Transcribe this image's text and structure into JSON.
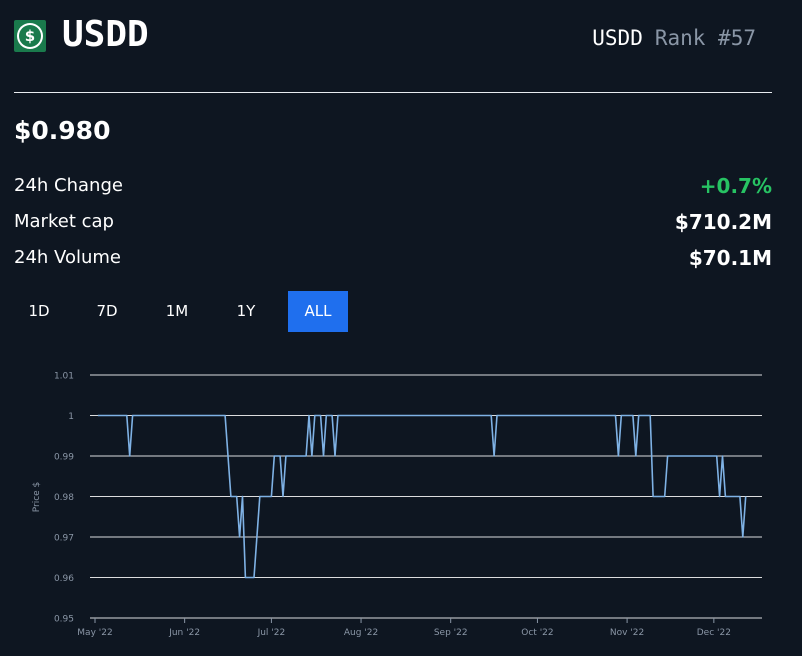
{
  "coin": {
    "name": "USDD",
    "symbol": "USDD",
    "rank": "Rank #57",
    "logo_glyph": "$",
    "icon": "usdd-logo-icon"
  },
  "price": "$0.980",
  "stats": [
    {
      "label": "24h Change",
      "value": "+0.7%",
      "tone": "positive"
    },
    {
      "label": "Market cap",
      "value": "$710.2M",
      "tone": "neutral"
    },
    {
      "label": "24h Volume",
      "value": "$70.1M",
      "tone": "neutral"
    }
  ],
  "tabs": [
    {
      "label": "1D",
      "active": false
    },
    {
      "label": "7D",
      "active": false
    },
    {
      "label": "1M",
      "active": false
    },
    {
      "label": "1Y",
      "active": false
    },
    {
      "label": "ALL",
      "active": true
    }
  ],
  "colors": {
    "background": "#0e1621",
    "positive": "#27c363",
    "accent": "#1f6fee",
    "line": "#7fb2e5",
    "gridline": "#ffffff"
  },
  "chart_data": {
    "type": "line",
    "title": "",
    "xlabel": "",
    "ylabel": "Price $",
    "ylim": [
      0.95,
      1.01
    ],
    "yticks": [
      "1.01",
      "1",
      "0.99",
      "0.98",
      "0.97",
      "0.96",
      "0.95"
    ],
    "xticks": [
      "May '22",
      "Jun '22",
      "Jul '22",
      "Aug '22",
      "Sep '22",
      "Oct '22",
      "Nov '22",
      "Dec '22"
    ],
    "xtick_dates": [
      "2022-05-01",
      "2022-06-01",
      "2022-07-01",
      "2022-08-01",
      "2022-09-01",
      "2022-10-01",
      "2022-11-01",
      "2022-12-01"
    ],
    "grid": true,
    "legend": "none",
    "series": [
      {
        "name": "",
        "points": [
          [
            "2022-05-02",
            1.0
          ],
          [
            "2022-05-12",
            1.0
          ],
          [
            "2022-05-13",
            0.99
          ],
          [
            "2022-05-14",
            1.0
          ],
          [
            "2022-06-15",
            1.0
          ],
          [
            "2022-06-17",
            0.98
          ],
          [
            "2022-06-19",
            0.98
          ],
          [
            "2022-06-20",
            0.97
          ],
          [
            "2022-06-21",
            0.98
          ],
          [
            "2022-06-22",
            0.96
          ],
          [
            "2022-06-25",
            0.96
          ],
          [
            "2022-06-27",
            0.98
          ],
          [
            "2022-07-01",
            0.98
          ],
          [
            "2022-07-02",
            0.99
          ],
          [
            "2022-07-04",
            0.99
          ],
          [
            "2022-07-05",
            0.98
          ],
          [
            "2022-07-06",
            0.99
          ],
          [
            "2022-07-13",
            0.99
          ],
          [
            "2022-07-14",
            1.0
          ],
          [
            "2022-07-15",
            0.99
          ],
          [
            "2022-07-16",
            1.0
          ],
          [
            "2022-07-18",
            1.0
          ],
          [
            "2022-07-19",
            0.99
          ],
          [
            "2022-07-20",
            1.0
          ],
          [
            "2022-07-22",
            1.0
          ],
          [
            "2022-07-23",
            0.99
          ],
          [
            "2022-07-24",
            1.0
          ],
          [
            "2022-09-15",
            1.0
          ],
          [
            "2022-09-16",
            0.99
          ],
          [
            "2022-09-17",
            1.0
          ],
          [
            "2022-10-28",
            1.0
          ],
          [
            "2022-10-29",
            0.99
          ],
          [
            "2022-10-30",
            1.0
          ],
          [
            "2022-11-03",
            1.0
          ],
          [
            "2022-11-04",
            0.99
          ],
          [
            "2022-11-05",
            1.0
          ],
          [
            "2022-11-09",
            1.0
          ],
          [
            "2022-11-10",
            0.98
          ],
          [
            "2022-11-14",
            0.98
          ],
          [
            "2022-11-15",
            0.99
          ],
          [
            "2022-12-02",
            0.99
          ],
          [
            "2022-12-03",
            0.98
          ],
          [
            "2022-12-04",
            0.99
          ],
          [
            "2022-12-05",
            0.98
          ],
          [
            "2022-12-10",
            0.98
          ],
          [
            "2022-12-11",
            0.97
          ],
          [
            "2022-12-12",
            0.98
          ]
        ]
      }
    ]
  }
}
